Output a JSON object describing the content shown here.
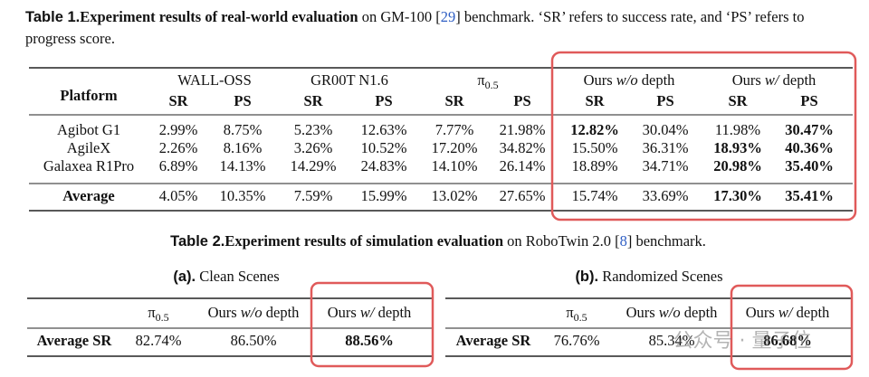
{
  "table1": {
    "caption": {
      "label": "Table 1.",
      "title": "Experiment results of real-world evaluation",
      "before_ref": " on GM-100 [",
      "ref": "29",
      "after_ref": "] benchmark. ‘SR’ refers to success rate, and ‘PS’ refers to",
      "line2": "progress score."
    },
    "row_header": "Platform",
    "groups": [
      {
        "name": "WALL-OSS"
      },
      {
        "name": "GR00T N1.6"
      },
      {
        "name": "π",
        "sub": "0.5"
      },
      {
        "name": "Ours ",
        "em": "w/o",
        "tail": " depth"
      },
      {
        "name": "Ours ",
        "em": "w/",
        "tail": " depth"
      }
    ],
    "metrics": [
      "SR",
      "PS"
    ],
    "rows": [
      {
        "platform": "Agibot G1",
        "values": [
          "2.99%",
          "8.75%",
          "5.23%",
          "12.63%",
          "7.77%",
          "21.98%",
          "12.82%",
          "30.04%",
          "11.98%",
          "30.47%"
        ],
        "bold": [
          6,
          9
        ]
      },
      {
        "platform": "AgileX",
        "values": [
          "2.26%",
          "8.16%",
          "3.26%",
          "10.52%",
          "17.20%",
          "34.82%",
          "15.50%",
          "36.31%",
          "18.93%",
          "40.36%"
        ],
        "bold": [
          8,
          9
        ]
      },
      {
        "platform": "Galaxea R1Pro",
        "values": [
          "6.89%",
          "14.13%",
          "14.29%",
          "24.83%",
          "14.10%",
          "26.14%",
          "18.89%",
          "34.71%",
          "20.98%",
          "35.40%"
        ],
        "bold": [
          8,
          9
        ]
      }
    ],
    "average": {
      "platform": "Average",
      "values": [
        "4.05%",
        "10.35%",
        "7.59%",
        "15.99%",
        "13.02%",
        "27.65%",
        "15.74%",
        "33.69%",
        "17.30%",
        "35.41%"
      ],
      "bold": [
        8,
        9
      ]
    }
  },
  "table2": {
    "caption": {
      "label": "Table 2.",
      "title": "Experiment results of simulation evaluation",
      "before_ref": " on RoboTwin 2.0 [",
      "ref": "8",
      "after_ref": "] benchmark."
    },
    "subtables": [
      {
        "label": "(a).",
        "title": " Clean Scenes",
        "columns": [
          {
            "name": "π",
            "sub": "0.5"
          },
          {
            "name": "Ours ",
            "em": "w/o",
            "tail": " depth"
          },
          {
            "name": "Ours ",
            "em": "w/",
            "tail": " depth"
          }
        ],
        "row_label": "Average SR",
        "values": [
          "82.74%",
          "86.50%",
          "88.56%"
        ],
        "bold": [
          2
        ]
      },
      {
        "label": "(b).",
        "title": " Randomized Scenes",
        "columns": [
          {
            "name": "π",
            "sub": "0.5"
          },
          {
            "name": "Ours ",
            "em": "w/o",
            "tail": " depth"
          },
          {
            "name": "Ours ",
            "em": "w/",
            "tail": " depth"
          }
        ],
        "row_label": "Average SR",
        "values": [
          "76.76%",
          "85.34%",
          "86.68%"
        ],
        "bold": [
          2
        ]
      }
    ]
  },
  "watermark": "公众号 · 量子位"
}
